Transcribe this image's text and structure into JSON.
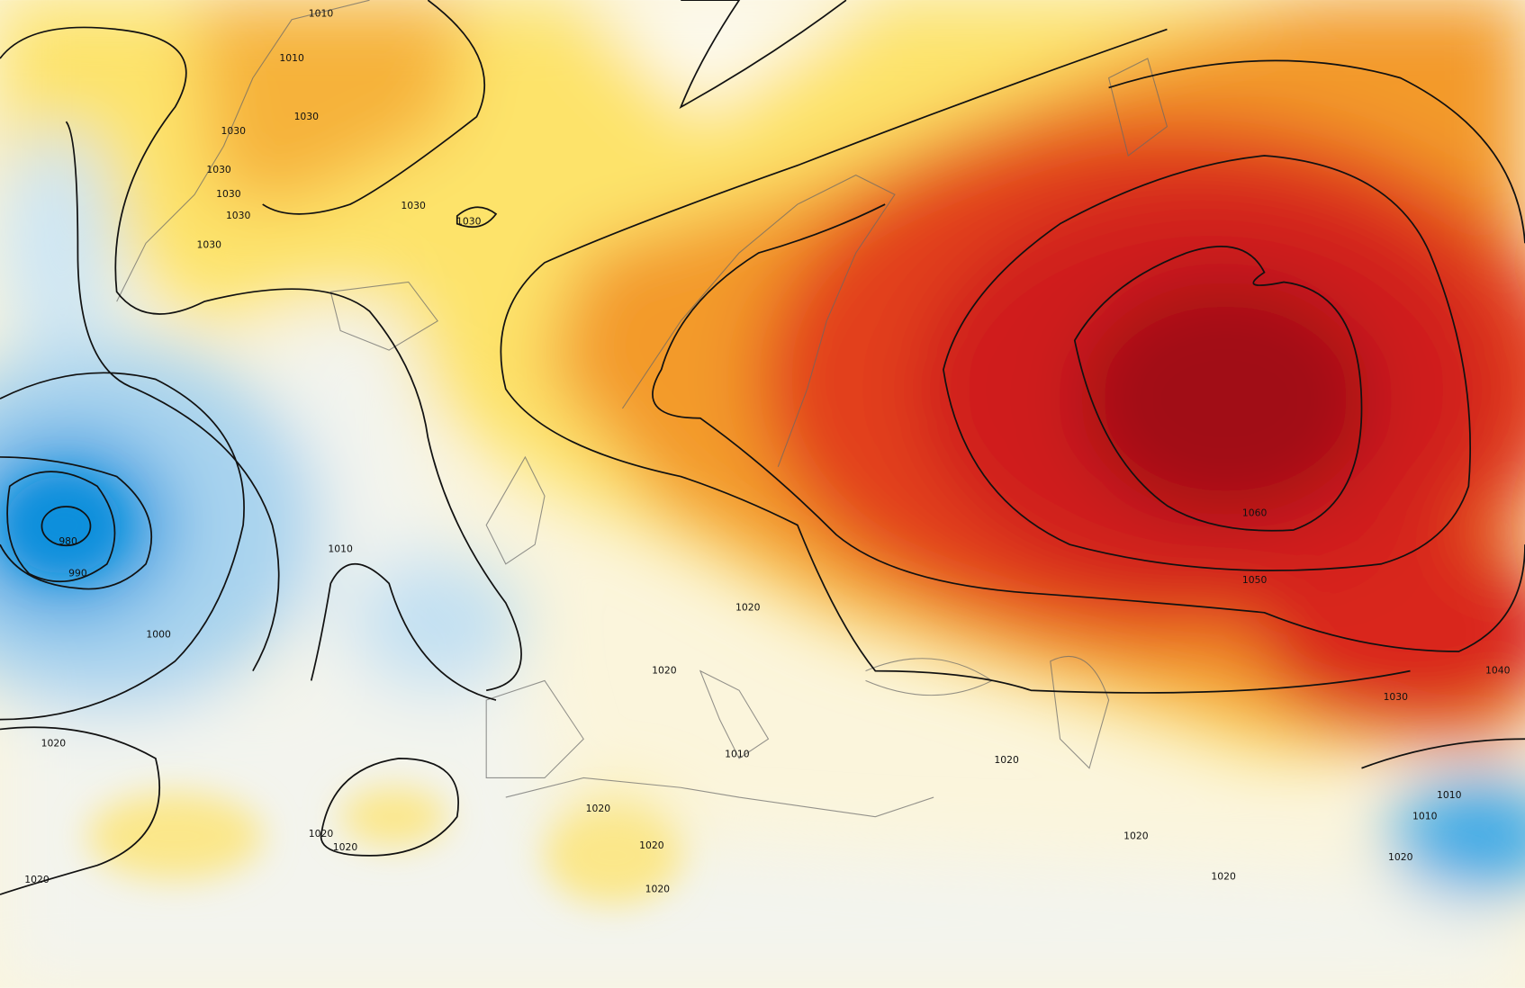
{
  "labels": [
    "1010",
    "1010",
    "1030",
    "1030",
    "1030",
    "1030",
    "1030",
    "1030",
    "1030",
    "1030",
    "980",
    "990",
    "1000",
    "1010",
    "1020",
    "1020",
    "1020",
    "1020",
    "1020",
    "1020",
    "1010",
    "1020",
    "1020",
    "1020",
    "1060",
    "1050",
    "1040",
    "1030",
    "1020",
    "1020",
    "1020",
    "1010",
    "1010",
    "1020"
  ]
}
